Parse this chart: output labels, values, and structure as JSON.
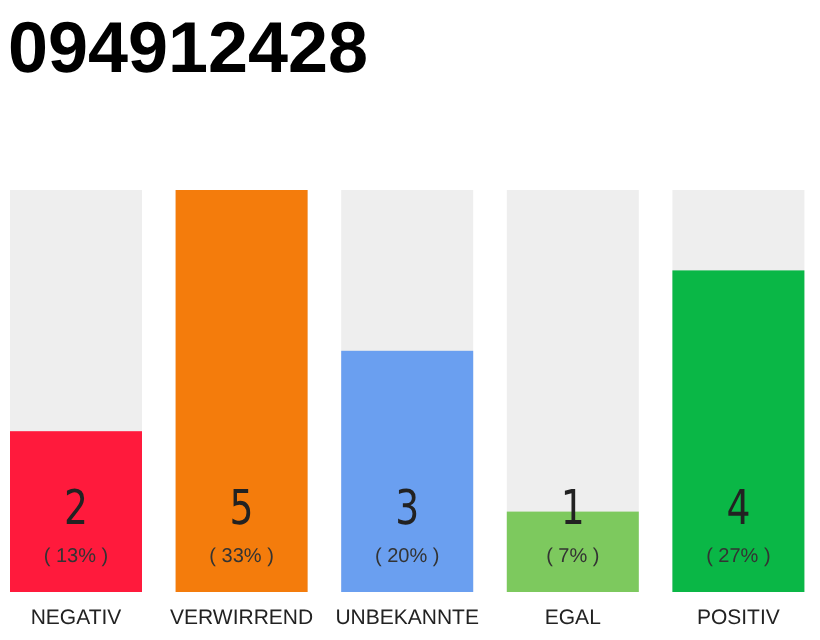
{
  "chart_data": {
    "type": "bar",
    "title": "094912428",
    "categories": [
      "NEGATIV",
      "VERWIRREND",
      "UNBEKANNTE",
      "EGAL",
      "POSITIV"
    ],
    "values": [
      2,
      5,
      3,
      1,
      4
    ],
    "colors": [
      "#ff1a3c",
      "#f47c0c",
      "#6a9ff0",
      "#7dc95e",
      "#0ab746"
    ],
    "ylim": [
      0,
      5
    ],
    "tick_labels": "x",
    "data_labels": true,
    "annotations": [
      "( 13% )",
      "( 33% )",
      "( 20% )",
      "( 7% )",
      "( 27% )"
    ]
  }
}
